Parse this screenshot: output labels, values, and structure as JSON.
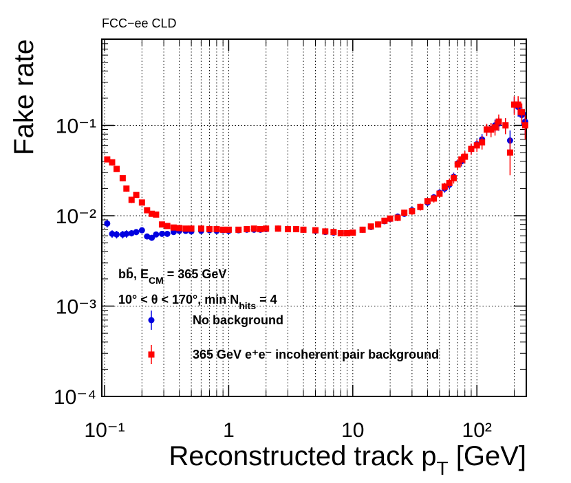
{
  "chart_data": {
    "type": "scatter",
    "header": "FCC−ee CLD",
    "ylabel": "Fake rate",
    "xlabel": {
      "main": "Reconstructed track p",
      "sub": "T",
      "unit": " [GeV]"
    },
    "annotations": [
      [
        "bb̄, E",
        "CM",
        " = 365 GeV"
      ],
      [
        "10° < θ < 170°, min N",
        "hits",
        " = 4"
      ]
    ],
    "xlog": true,
    "ylog": true,
    "xlim": [
      0.095,
      250
    ],
    "ylim": [
      0.0001,
      0.9
    ],
    "xticks": [
      {
        "value": 0.1,
        "label": "10⁻¹"
      },
      1,
      10,
      {
        "value": 100,
        "label": "10²"
      }
    ],
    "yticks": [
      {
        "value": 0.0001,
        "label": "10⁻⁴"
      },
      {
        "value": 0.001,
        "label": "10⁻³"
      },
      {
        "value": 0.01,
        "label": "10⁻²"
      },
      {
        "value": 0.1,
        "label": "10⁻¹"
      }
    ],
    "xgrid": true,
    "ygrid": true,
    "xgrid_minor": true,
    "x": [
      0.105,
      0.115,
      0.125,
      0.14,
      0.15,
      0.165,
      0.18,
      0.2,
      0.22,
      0.24,
      0.26,
      0.29,
      0.32,
      0.36,
      0.4,
      0.45,
      0.5,
      0.6,
      0.7,
      0.8,
      0.9,
      1,
      1.2,
      1.4,
      1.6,
      1.8,
      2,
      2.5,
      3,
      3.5,
      4,
      5,
      6,
      7,
      8,
      9,
      10,
      12,
      14,
      16,
      18,
      20,
      23,
      26,
      30,
      35,
      40,
      45,
      50,
      55,
      60,
      65,
      70,
      75,
      80,
      90,
      100,
      110,
      120,
      130,
      140,
      150,
      170,
      185,
      200,
      215,
      230,
      245
    ],
    "series": [
      {
        "name": "No background",
        "color": "#0000e0",
        "marker": "circle",
        "values": [
          0.0082,
          0.0063,
          0.0062,
          0.0062,
          0.0063,
          0.0064,
          0.0066,
          0.0069,
          0.0059,
          0.0057,
          0.0062,
          0.0063,
          0.0063,
          0.0066,
          0.0068,
          0.0068,
          0.0067,
          0.0068,
          0.0069,
          0.0068,
          0.0069,
          0.0068,
          0.0069,
          0.007,
          0.007,
          0.007,
          0.0071,
          0.0072,
          0.0071,
          0.0071,
          0.007,
          0.0068,
          0.0066,
          0.0065,
          0.0064,
          0.0064,
          0.0065,
          0.007,
          0.0075,
          0.008,
          0.0087,
          0.0092,
          0.0098,
          0.0105,
          0.0115,
          0.0125,
          0.014,
          0.016,
          0.018,
          0.02,
          0.022,
          0.027,
          0.038,
          0.04,
          0.045,
          0.055,
          0.062,
          0.07,
          0.09,
          0.092,
          0.1,
          0.105,
          0.1,
          0.068,
          0.17,
          0.16,
          0.13,
          0.11
        ],
        "errors": [
          0.0008,
          0.0006,
          0.0006,
          0.0006,
          0.0006,
          0.0005,
          0.0005,
          0.0005,
          0.0004,
          0.0004,
          0.0004,
          0.0004,
          0.0004,
          0.0003,
          0.0003,
          0.0003,
          0.0003,
          0.0003,
          0.0003,
          0.0003,
          0.0003,
          0.0003,
          0.0003,
          0.0003,
          0.0003,
          0.0003,
          0.0003,
          0.0003,
          0.0003,
          0.0003,
          0.0003,
          0.0003,
          0.0003,
          0.0003,
          0.0003,
          0.0003,
          0.0003,
          0.0004,
          0.0004,
          0.0005,
          0.0005,
          0.0006,
          0.0007,
          0.0008,
          0.0009,
          0.001,
          0.0012,
          0.0014,
          0.0017,
          0.002,
          0.0025,
          0.003,
          0.004,
          0.005,
          0.006,
          0.007,
          0.008,
          0.01,
          0.012,
          0.014,
          0.016,
          0.018,
          0.02,
          0.02,
          0.035,
          0.035,
          0.03,
          0.03
        ]
      },
      {
        "name": "365 GeV e⁺e⁻ incoherent pair background",
        "color": "#ff0000",
        "marker": "square",
        "values": [
          0.042,
          0.039,
          0.033,
          0.026,
          0.02,
          0.015,
          0.017,
          0.014,
          0.0115,
          0.0105,
          0.0103,
          0.008,
          0.0077,
          0.0074,
          0.0073,
          0.0072,
          0.0072,
          0.0072,
          0.0071,
          0.0071,
          0.007,
          0.007,
          0.007,
          0.0071,
          0.0072,
          0.0071,
          0.0072,
          0.0072,
          0.0071,
          0.0071,
          0.007,
          0.0069,
          0.0067,
          0.0066,
          0.0064,
          0.0064,
          0.0065,
          0.007,
          0.0076,
          0.008,
          0.0088,
          0.0093,
          0.0095,
          0.0108,
          0.0112,
          0.0125,
          0.0145,
          0.0155,
          0.0175,
          0.021,
          0.023,
          0.026,
          0.037,
          0.042,
          0.045,
          0.055,
          0.06,
          0.065,
          0.09,
          0.09,
          0.095,
          0.11,
          0.1,
          0.05,
          0.17,
          0.17,
          0.14,
          0.1
        ],
        "errors": [
          0.003,
          0.003,
          0.002,
          0.002,
          0.0015,
          0.0012,
          0.0012,
          0.001,
          0.0008,
          0.0007,
          0.0007,
          0.0005,
          0.0005,
          0.0004,
          0.0004,
          0.0003,
          0.0003,
          0.0003,
          0.0003,
          0.0003,
          0.0003,
          0.0003,
          0.0003,
          0.0003,
          0.0003,
          0.0003,
          0.0003,
          0.0003,
          0.0003,
          0.0003,
          0.0003,
          0.0003,
          0.0003,
          0.0003,
          0.0003,
          0.0003,
          0.0003,
          0.0004,
          0.0004,
          0.0005,
          0.0006,
          0.0007,
          0.0008,
          0.0009,
          0.001,
          0.0011,
          0.0013,
          0.0015,
          0.0018,
          0.0022,
          0.0028,
          0.0033,
          0.005,
          0.006,
          0.007,
          0.008,
          0.009,
          0.011,
          0.014,
          0.016,
          0.018,
          0.022,
          0.02,
          0.022,
          0.04,
          0.04,
          0.035,
          0.03
        ]
      }
    ]
  }
}
